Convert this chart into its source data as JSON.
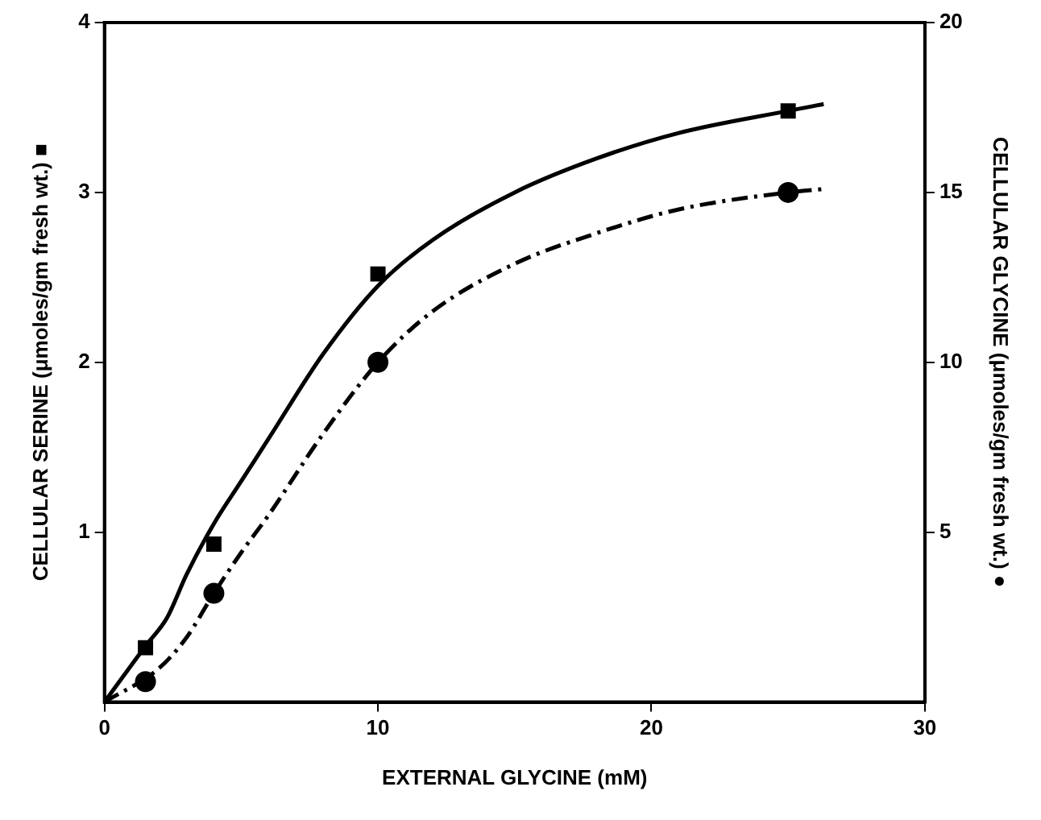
{
  "chart_data": {
    "type": "scatter",
    "xlabel": "EXTERNAL GLYCINE (mM)",
    "ylabel": "CELLULAR SERINE (μmoles/gm fresh wt.) ■",
    "y2label": "CELLULAR GLYCINE (μmoles/gm fresh wt.) ●",
    "xlim": [
      0,
      30
    ],
    "xticks": [
      0,
      10,
      20,
      30
    ],
    "ylim": [
      0,
      4
    ],
    "yticks": [
      1,
      2,
      3,
      4
    ],
    "y2lim": [
      0,
      20
    ],
    "y2ticks": [
      5,
      10,
      15,
      20
    ],
    "grid": false,
    "legend": false,
    "series": [
      {
        "marker": "square",
        "color": "#000000",
        "x": [
          1.5,
          4,
          10,
          25
        ],
        "values": [
          0.32,
          0.93,
          2.52,
          3.48
        ]
      },
      {
        "marker": "circle",
        "color": "#000000",
        "axis": "y2",
        "x": [
          1.5,
          4,
          10,
          25
        ],
        "values": [
          0.6,
          3.2,
          10,
          15
        ]
      },
      {
        "type": "line",
        "line_style": "solid",
        "color": "#000000",
        "x": [
          0,
          1.5,
          2.3,
          3,
          4,
          5,
          6,
          8,
          10,
          12,
          15,
          18,
          21,
          25,
          26.3
        ],
        "values": [
          0,
          0.33,
          0.5,
          0.75,
          1.05,
          1.3,
          1.55,
          2.05,
          2.45,
          2.72,
          3.0,
          3.2,
          3.35,
          3.48,
          3.52
        ]
      },
      {
        "type": "line",
        "line_style": "dashed",
        "color": "#000000",
        "axis": "y2",
        "x": [
          0,
          2,
          3,
          4,
          5,
          6,
          8,
          10,
          12,
          15,
          18,
          21,
          25,
          26.3
        ],
        "values": [
          0,
          1.0,
          1.9,
          3.2,
          4.4,
          5.5,
          7.9,
          10,
          11.5,
          12.9,
          13.8,
          14.5,
          15,
          15.1
        ]
      }
    ]
  }
}
